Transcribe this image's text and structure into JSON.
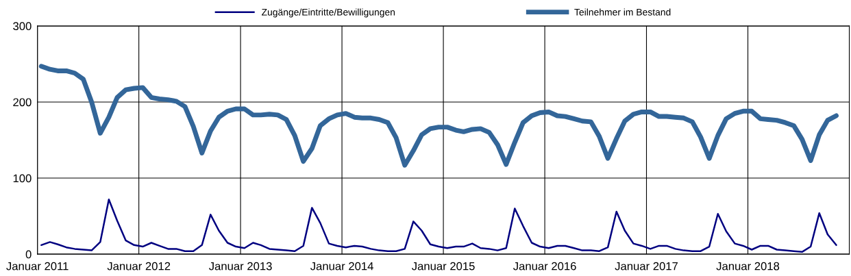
{
  "chart_data": {
    "type": "line",
    "x": [
      "2011-01-15",
      "2011-02-15",
      "2011-03-15",
      "2011-04-15",
      "2011-05-15",
      "2011-06-15",
      "2011-07-15",
      "2011-08-15",
      "2011-09-15",
      "2011-10-15",
      "2011-11-15",
      "2011-12-15",
      "2012-01-15",
      "2012-02-15",
      "2012-03-15",
      "2012-04-15",
      "2012-05-15",
      "2012-06-15",
      "2012-07-15",
      "2012-08-15",
      "2012-09-15",
      "2012-10-15",
      "2012-11-15",
      "2012-12-15",
      "2013-01-15",
      "2013-02-15",
      "2013-03-15",
      "2013-04-15",
      "2013-05-15",
      "2013-06-15",
      "2013-07-15",
      "2013-08-15",
      "2013-09-15",
      "2013-10-15",
      "2013-11-15",
      "2013-12-15",
      "2014-01-15",
      "2014-02-15",
      "2014-03-15",
      "2014-04-15",
      "2014-05-15",
      "2014-06-15",
      "2014-07-15",
      "2014-08-15",
      "2014-09-15",
      "2014-10-15",
      "2014-11-15",
      "2014-12-15",
      "2015-01-15",
      "2015-02-15",
      "2015-03-15",
      "2015-04-15",
      "2015-05-15",
      "2015-06-15",
      "2015-07-15",
      "2015-08-15",
      "2015-09-15",
      "2015-10-15",
      "2015-11-15",
      "2015-12-15",
      "2016-01-15",
      "2016-02-15",
      "2016-03-15",
      "2016-04-15",
      "2016-05-15",
      "2016-06-15",
      "2016-07-15",
      "2016-08-15",
      "2016-09-15",
      "2016-10-15",
      "2016-11-15",
      "2016-12-15",
      "2017-01-15",
      "2017-02-15",
      "2017-03-15",
      "2017-04-15",
      "2017-05-15",
      "2017-06-15",
      "2017-07-15",
      "2017-08-15",
      "2017-09-15",
      "2017-10-15",
      "2017-11-15",
      "2017-12-15",
      "2018-01-15",
      "2018-02-15",
      "2018-03-15",
      "2018-04-15",
      "2018-05-15",
      "2018-06-15",
      "2018-07-15",
      "2018-08-15",
      "2018-09-15",
      "2018-10-15",
      "2018-11-15"
    ],
    "series": [
      {
        "name": "Zugänge/Eintritte/Bewilligungen",
        "color": "#000080",
        "values": [
          12,
          16,
          13,
          9,
          7,
          6,
          5,
          16,
          72,
          44,
          18,
          12,
          10,
          15,
          11,
          7,
          7,
          4,
          4,
          12,
          52,
          31,
          15,
          10,
          8,
          15,
          12,
          7,
          6,
          5,
          4,
          11,
          61,
          41,
          14,
          11,
          9,
          11,
          10,
          7,
          5,
          4,
          4,
          7,
          43,
          31,
          13,
          10,
          8,
          10,
          10,
          14,
          8,
          7,
          5,
          8,
          60,
          37,
          15,
          10,
          8,
          11,
          11,
          8,
          5,
          5,
          4,
          9,
          56,
          31,
          14,
          11,
          7,
          11,
          11,
          7,
          5,
          4,
          4,
          10,
          53,
          30,
          14,
          11,
          6,
          11,
          11,
          6,
          5,
          4,
          3,
          10,
          54,
          26,
          12
        ]
      },
      {
        "name": "Teilnehmer im Bestand",
        "color": "#336699",
        "values": [
          247,
          243,
          241,
          241,
          238,
          230,
          200,
          159,
          180,
          206,
          216,
          218,
          219,
          206,
          204,
          203,
          201,
          194,
          168,
          133,
          162,
          180,
          188,
          191,
          191,
          183,
          183,
          184,
          183,
          177,
          156,
          122,
          139,
          169,
          178,
          183,
          185,
          180,
          179,
          179,
          177,
          173,
          153,
          117,
          136,
          157,
          165,
          167,
          167,
          163,
          161,
          164,
          165,
          160,
          144,
          118,
          147,
          173,
          182,
          186,
          187,
          182,
          181,
          178,
          175,
          174,
          155,
          126,
          152,
          175,
          184,
          187,
          187,
          181,
          181,
          180,
          179,
          174,
          154,
          126,
          156,
          178,
          185,
          188,
          188,
          178,
          177,
          176,
          173,
          169,
          151,
          123,
          157,
          176,
          182
        ]
      }
    ],
    "xlim": [
      "2011-01-01",
      "2019-01-01"
    ],
    "xticks": [
      {
        "value": "2011-01-01",
        "label": "Januar 2011"
      },
      {
        "value": "2012-01-01",
        "label": "Januar 2012"
      },
      {
        "value": "2013-01-01",
        "label": "Januar 2013"
      },
      {
        "value": "2014-01-01",
        "label": "Januar 2014"
      },
      {
        "value": "2015-01-01",
        "label": "Januar 2015"
      },
      {
        "value": "2016-01-01",
        "label": "Januar 2016"
      },
      {
        "value": "2017-01-01",
        "label": "Januar 2017"
      },
      {
        "value": "2018-01-01",
        "label": "Januar 2018"
      }
    ],
    "ylim": [
      0,
      300
    ],
    "yticks": [
      0,
      100,
      200,
      300
    ],
    "grid": true,
    "legend": "top",
    "marker": "none",
    "line_style": "solid"
  }
}
